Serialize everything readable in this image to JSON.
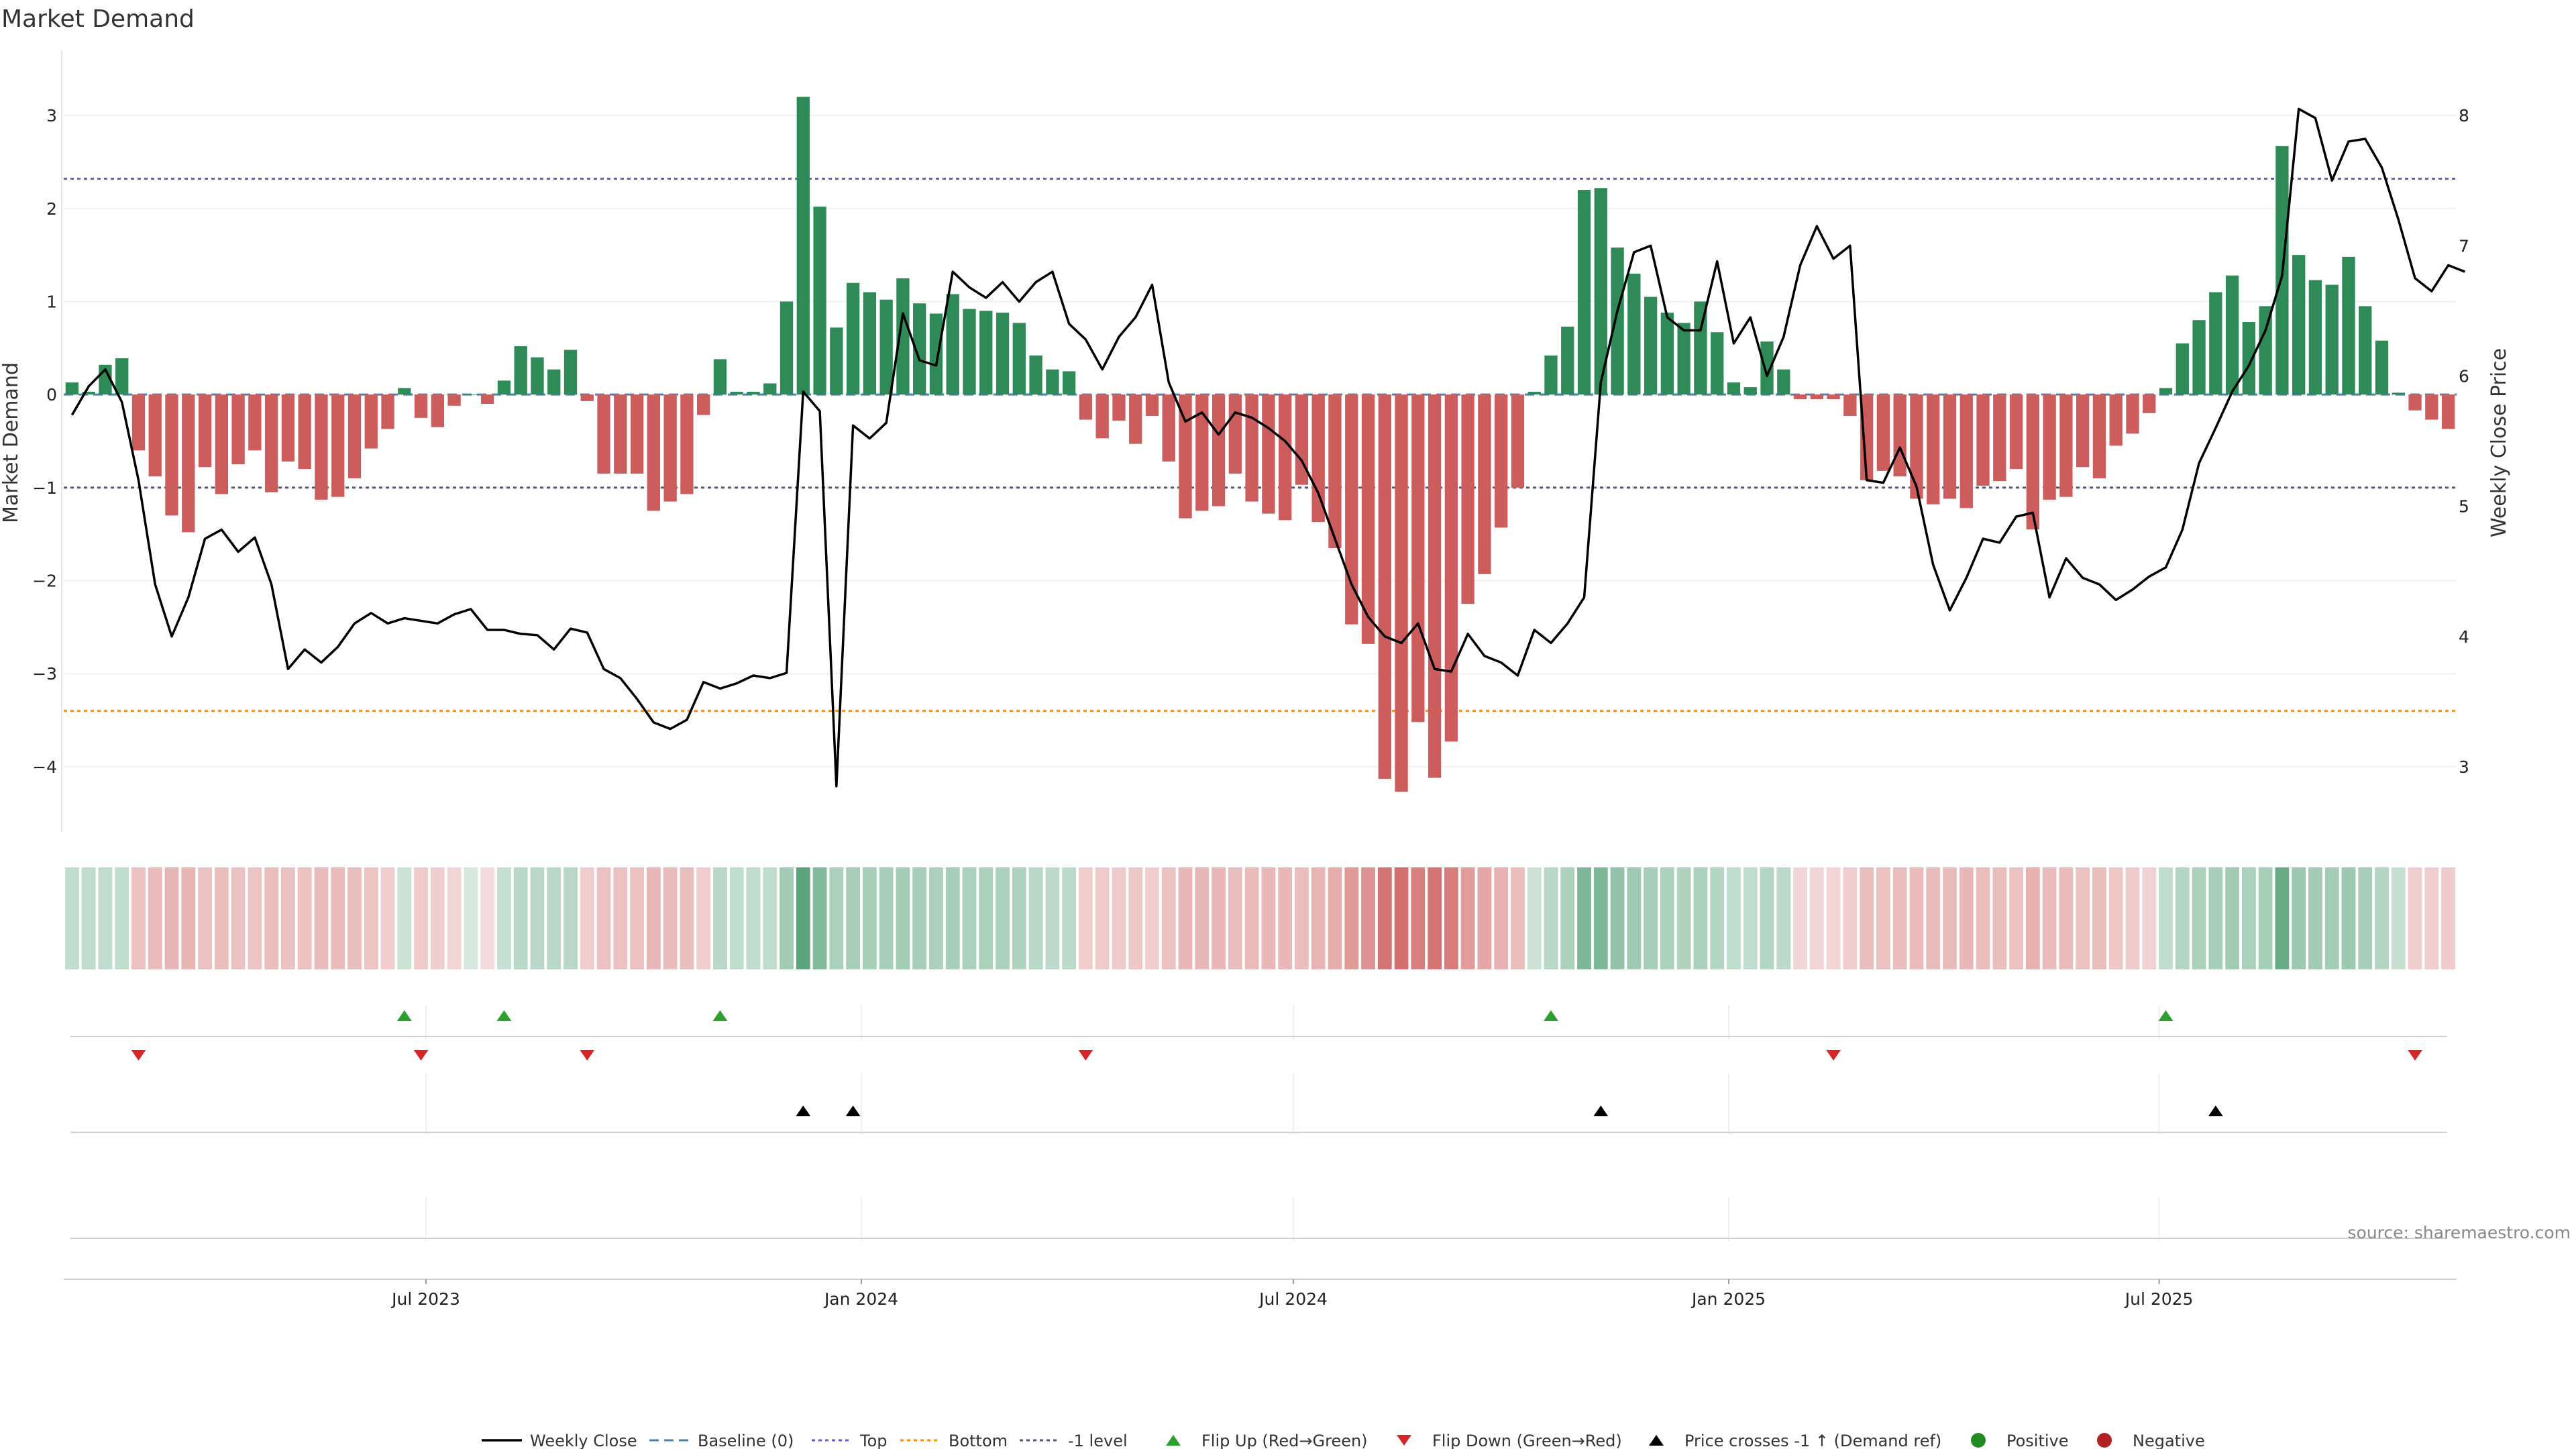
{
  "title": "Market Demand",
  "source": "source: sharemaestro.com",
  "colors": {
    "positive": "#2e8b57",
    "negative": "#cd5c5c",
    "price_line": "#000000",
    "baseline": "#4682b4",
    "top": "#6a5acd",
    "bottom": "#ff8c00",
    "minus_one": "#555577",
    "flip_up": "#2ca02c",
    "flip_down": "#d62728",
    "cross": "#000000",
    "positive_dot": "#228b22",
    "negative_dot": "#b22222"
  },
  "chart_data": {
    "type": "bar",
    "title": "Market Demand",
    "ylabel": "Market Demand",
    "y2label": "Weekly Close Price",
    "ylim": [
      -4.7,
      3.7
    ],
    "y2lim": [
      2.5,
      8.5
    ],
    "yticks": [
      3,
      2,
      1,
      0,
      -1,
      -2,
      -3,
      -4
    ],
    "ytick_labels": [
      "3",
      "2",
      "1",
      "0",
      "−1",
      "−2",
      "−3",
      "−4"
    ],
    "y2ticks": [
      8,
      7,
      6,
      5,
      4,
      3
    ],
    "y2tick_labels": [
      "8",
      "7",
      "6",
      "5",
      "4",
      "3"
    ],
    "x_tick_labels": [
      "Jul 2023",
      "Jan 2024",
      "Jul 2024",
      "Jan 2025",
      "Jul 2025"
    ],
    "x_tick_weeks": [
      21.3,
      47.5,
      73.5,
      99.7,
      125.6
    ],
    "reference_lines": {
      "top": 2.32,
      "bottom": -3.4,
      "minus_one": -1.0,
      "baseline": 0
    },
    "demand": [
      0.13,
      0.03,
      0.32,
      0.39,
      -0.6,
      -0.88,
      -1.3,
      -1.48,
      -0.78,
      -1.07,
      -0.75,
      -0.6,
      -1.05,
      -0.72,
      -0.8,
      -1.13,
      -1.1,
      -0.9,
      -0.58,
      -0.37,
      0.07,
      -0.25,
      -0.35,
      -0.12,
      0.0,
      -0.1,
      0.15,
      0.52,
      0.4,
      0.27,
      0.48,
      -0.07,
      -0.85,
      -0.85,
      -0.85,
      -1.25,
      -1.15,
      -1.07,
      -0.22,
      0.38,
      0.03,
      0.03,
      0.12,
      1.0,
      3.2,
      2.02,
      0.72,
      1.2,
      1.1,
      1.02,
      1.25,
      0.98,
      0.87,
      1.08,
      0.92,
      0.9,
      0.88,
      0.77,
      0.42,
      0.27,
      0.25,
      -0.27,
      -0.47,
      -0.28,
      -0.53,
      -0.23,
      -0.72,
      -1.33,
      -1.25,
      -1.2,
      -0.85,
      -1.15,
      -1.28,
      -1.35,
      -0.97,
      -1.37,
      -1.65,
      -2.47,
      -2.68,
      -4.13,
      -4.27,
      -3.52,
      -4.12,
      -3.73,
      -2.25,
      -1.93,
      -1.43,
      -1.0,
      0.03,
      0.42,
      0.73,
      2.2,
      2.22,
      1.58,
      1.3,
      1.05,
      0.88,
      0.77,
      1.0,
      0.67,
      0.13,
      0.08,
      0.57,
      0.27,
      -0.05,
      -0.05,
      -0.05,
      -0.23,
      -0.92,
      -0.82,
      -0.88,
      -1.12,
      -1.18,
      -1.12,
      -1.22,
      -0.98,
      -0.93,
      -0.8,
      -1.45,
      -1.13,
      -1.1,
      -0.78,
      -0.9,
      -0.55,
      -0.42,
      -0.2,
      0.07,
      0.55,
      0.8,
      1.1,
      1.28,
      0.78,
      0.95,
      2.67,
      1.5,
      1.23,
      1.18,
      1.48,
      0.95,
      0.58,
      0.02,
      -0.17,
      -0.27,
      -0.37
    ],
    "price": [
      5.7,
      5.92,
      6.05,
      5.8,
      5.2,
      4.4,
      4.0,
      4.3,
      4.75,
      4.82,
      4.65,
      4.76,
      4.4,
      3.75,
      3.9,
      3.8,
      3.92,
      4.1,
      4.18,
      4.1,
      4.14,
      4.12,
      4.1,
      4.17,
      4.21,
      4.05,
      4.05,
      4.02,
      4.01,
      3.9,
      4.06,
      4.03,
      3.75,
      3.68,
      3.52,
      3.34,
      3.29,
      3.36,
      3.65,
      3.6,
      3.64,
      3.7,
      3.68,
      3.72,
      5.88,
      5.73,
      2.85,
      5.62,
      5.52,
      5.64,
      6.48,
      6.12,
      6.08,
      6.8,
      6.68,
      6.6,
      6.72,
      6.57,
      6.72,
      6.8,
      6.4,
      6.28,
      6.05,
      6.3,
      6.45,
      6.7,
      5.95,
      5.65,
      5.72,
      5.55,
      5.72,
      5.68,
      5.6,
      5.5,
      5.35,
      5.1,
      4.75,
      4.4,
      4.15,
      4.0,
      3.95,
      4.1,
      3.75,
      3.73,
      4.02,
      3.85,
      3.8,
      3.7,
      4.05,
      3.95,
      4.1,
      4.3,
      5.95,
      6.5,
      6.95,
      7.0,
      6.45,
      6.35,
      6.35,
      6.88,
      6.25,
      6.45,
      6.0,
      6.3,
      6.85,
      7.15,
      6.9,
      7.0,
      5.2,
      5.18,
      5.45,
      5.15,
      4.55,
      4.2,
      4.45,
      4.75,
      4.72,
      4.92,
      4.95,
      4.3,
      4.6,
      4.45,
      4.4,
      4.28,
      4.36,
      4.46,
      4.53,
      4.82,
      5.33,
      5.6,
      5.88,
      6.08,
      6.35,
      6.77,
      8.05,
      7.98,
      7.5,
      7.8,
      7.82,
      7.6,
      7.2,
      6.75,
      6.65,
      6.85,
      6.8
    ],
    "gradient_strip_alpha": [
      0.3,
      0.3,
      0.3,
      0.3,
      0.38,
      0.42,
      0.45,
      0.45,
      0.38,
      0.4,
      0.38,
      0.36,
      0.4,
      0.38,
      0.38,
      0.42,
      0.42,
      0.4,
      0.36,
      0.3,
      0.25,
      0.32,
      0.3,
      0.25,
      0.2,
      0.22,
      0.28,
      0.34,
      0.34,
      0.34,
      0.34,
      0.3,
      0.38,
      0.38,
      0.38,
      0.44,
      0.42,
      0.4,
      0.3,
      0.34,
      0.3,
      0.3,
      0.3,
      0.45,
      0.78,
      0.6,
      0.4,
      0.42,
      0.42,
      0.42,
      0.44,
      0.42,
      0.4,
      0.42,
      0.4,
      0.4,
      0.4,
      0.38,
      0.34,
      0.32,
      0.32,
      0.3,
      0.32,
      0.32,
      0.34,
      0.3,
      0.38,
      0.44,
      0.44,
      0.44,
      0.4,
      0.42,
      0.44,
      0.44,
      0.4,
      0.46,
      0.5,
      0.62,
      0.66,
      0.85,
      0.88,
      0.78,
      0.86,
      0.8,
      0.6,
      0.55,
      0.48,
      0.4,
      0.25,
      0.34,
      0.4,
      0.62,
      0.62,
      0.52,
      0.46,
      0.42,
      0.4,
      0.38,
      0.4,
      0.36,
      0.3,
      0.3,
      0.36,
      0.32,
      0.25,
      0.25,
      0.25,
      0.3,
      0.4,
      0.38,
      0.4,
      0.42,
      0.42,
      0.42,
      0.44,
      0.4,
      0.4,
      0.38,
      0.48,
      0.42,
      0.42,
      0.38,
      0.4,
      0.34,
      0.32,
      0.28,
      0.3,
      0.36,
      0.4,
      0.42,
      0.45,
      0.4,
      0.42,
      0.72,
      0.48,
      0.45,
      0.44,
      0.48,
      0.42,
      0.36,
      0.28,
      0.3,
      0.3,
      0.32
    ],
    "flip_up_weeks": [
      20,
      26,
      39,
      89,
      126
    ],
    "flip_down_weeks": [
      4,
      21,
      31,
      61,
      106,
      141
    ],
    "price_cross_weeks": [
      44,
      47,
      92,
      129
    ],
    "series": [
      {
        "name": "Weekly Close",
        "values_key": "price"
      },
      {
        "name": "Market Demand",
        "values_key": "demand"
      }
    ]
  },
  "legend": [
    {
      "label": "Weekly Close",
      "kind": "line",
      "color_key": "price_line"
    },
    {
      "label": "Baseline (0)",
      "kind": "dash",
      "color_key": "baseline"
    },
    {
      "label": "Top",
      "kind": "dot",
      "color_key": "top"
    },
    {
      "label": "Bottom",
      "kind": "dot",
      "color_key": "bottom"
    },
    {
      "label": "-1 level",
      "kind": "dot",
      "color_key": "minus_one"
    },
    {
      "label": "Flip Up (Red→Green)",
      "kind": "tri-up",
      "color_key": "flip_up"
    },
    {
      "label": "Flip Down (Green→Red)",
      "kind": "tri-down",
      "color_key": "flip_down"
    },
    {
      "label": "Price crosses -1 ↑ (Demand ref)",
      "kind": "tri-up",
      "color_key": "cross"
    },
    {
      "label": "Positive",
      "kind": "circle",
      "color_key": "positive_dot"
    },
    {
      "label": "Negative",
      "kind": "circle",
      "color_key": "negative_dot"
    }
  ]
}
